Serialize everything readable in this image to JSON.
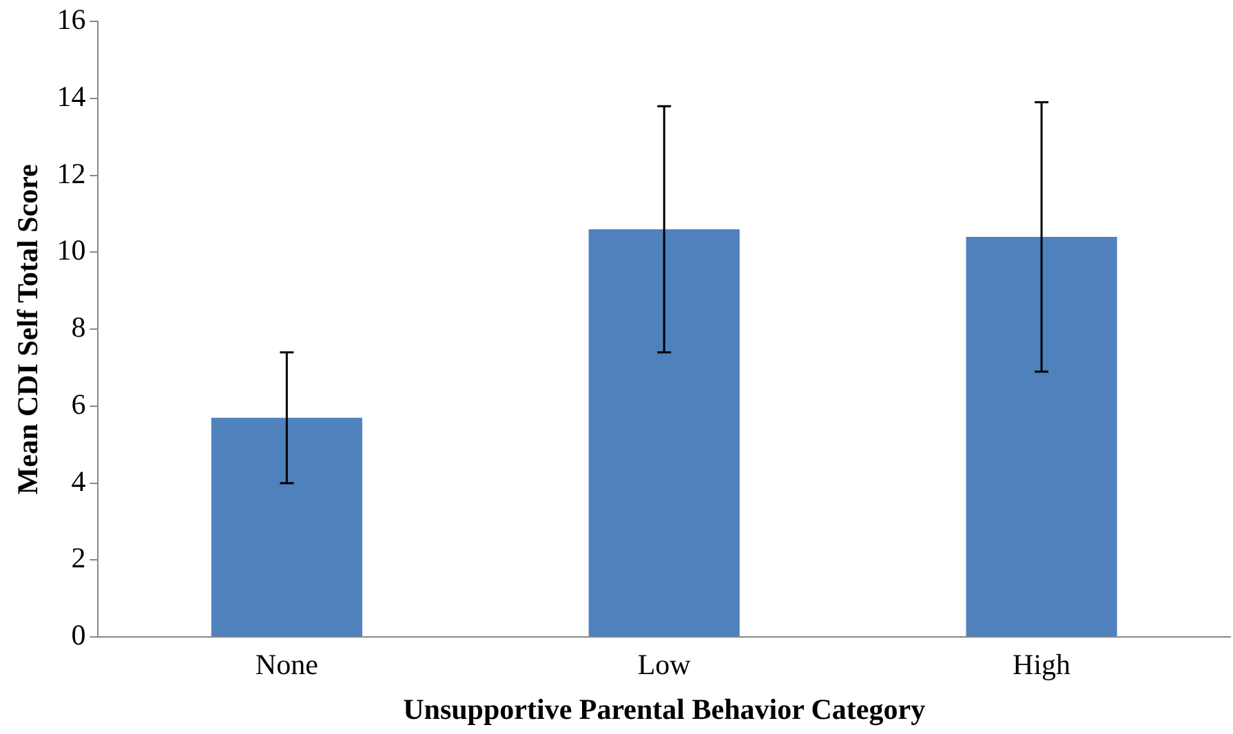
{
  "chart_data": {
    "type": "bar",
    "xlabel": "Unsupportive Parental Behavior Category",
    "ylabel": "Mean CDI Self Total Score",
    "categories": [
      "None",
      "Low",
      "High"
    ],
    "values": [
      5.7,
      10.6,
      10.4
    ],
    "errors": [
      1.7,
      3.2,
      3.5
    ],
    "color": "#4f81bd",
    "ylim": [
      0,
      16
    ],
    "yticks": [
      0,
      2,
      4,
      6,
      8,
      10,
      12,
      14,
      16
    ],
    "grid": false,
    "legend": false
  }
}
